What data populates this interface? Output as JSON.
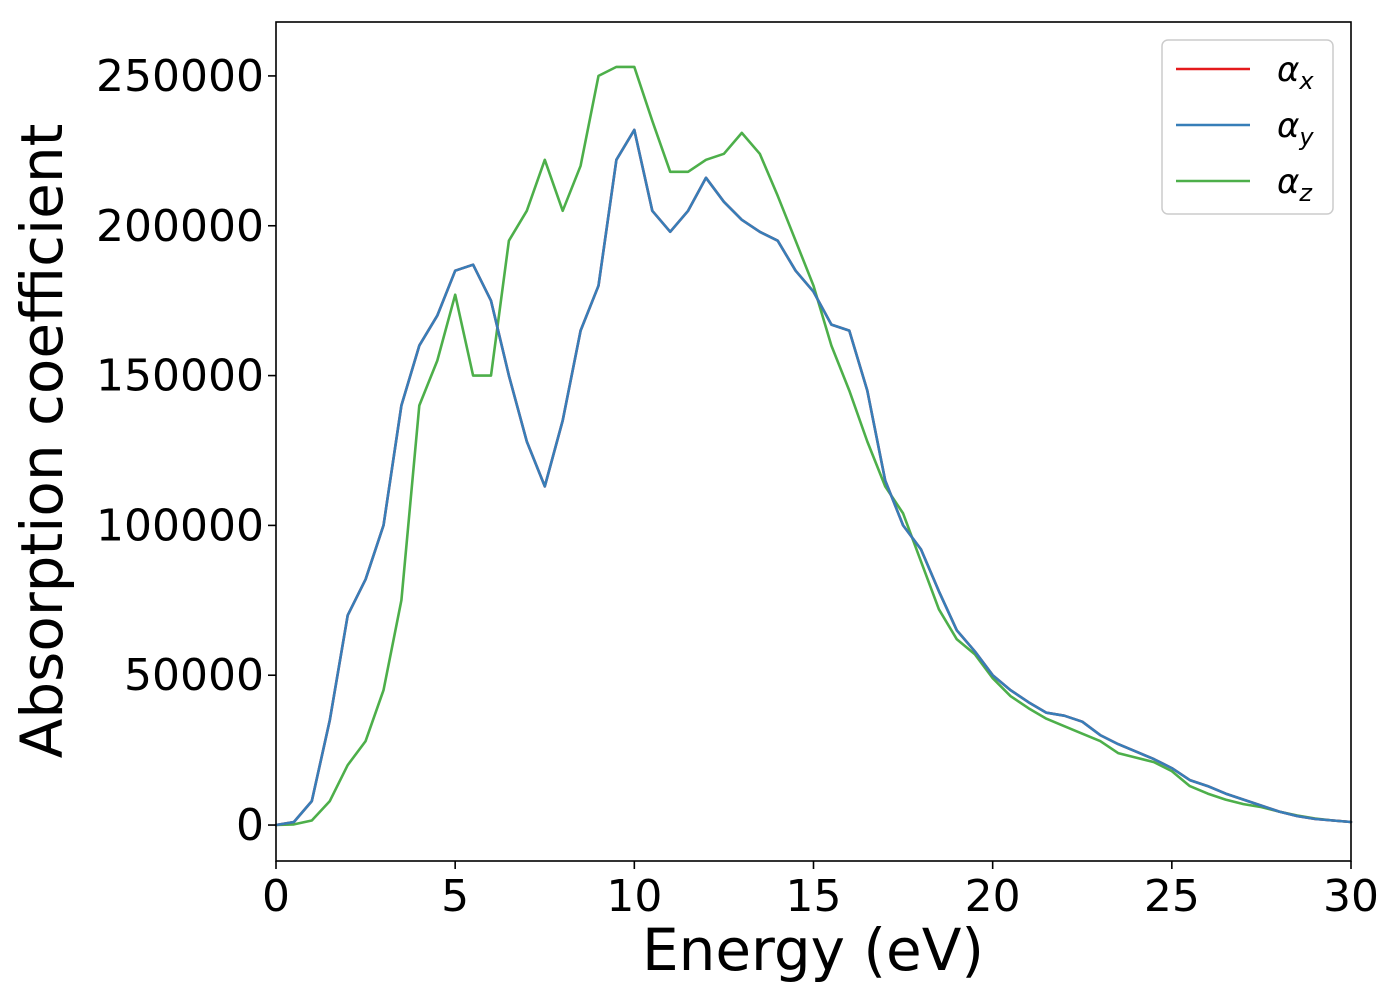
{
  "chart_data": {
    "type": "line",
    "xlabel": "Energy (eV)",
    "ylabel": "Absorption coefficient",
    "xlim": [
      0,
      30
    ],
    "ylim": [
      -12000,
      268000
    ],
    "xticks": [
      0,
      5,
      10,
      15,
      20,
      25,
      30
    ],
    "xtick_labels": [
      "0",
      "5",
      "10",
      "15",
      "20",
      "25",
      "30"
    ],
    "yticks": [
      0,
      50000,
      100000,
      150000,
      200000,
      250000
    ],
    "ytick_labels": [
      "0",
      "50000",
      "100000",
      "150000",
      "200000",
      "250000"
    ],
    "grid": false,
    "legend_position": "top-right",
    "series": [
      {
        "name": "α",
        "subscript": "x",
        "color": "#e41a1c",
        "x": [
          0,
          0.5,
          1.0,
          1.5,
          2.0,
          2.5,
          3.0,
          3.5,
          4.0,
          4.5,
          5.0,
          5.5,
          6.0,
          6.5,
          7.0,
          7.5,
          8.0,
          8.5,
          9.0,
          9.5,
          10.0,
          10.5,
          11.0,
          11.5,
          12.0,
          12.5,
          13.0,
          13.5,
          14.0,
          14.5,
          15.0,
          15.5,
          16.0,
          16.5,
          17.0,
          17.5,
          18.0,
          18.5,
          19.0,
          19.5,
          20.0,
          20.5,
          21.0,
          21.5,
          22.0,
          22.5,
          23.0,
          23.5,
          24.0,
          24.5,
          25.0,
          25.5,
          26.0,
          26.5,
          27.0,
          27.5,
          28.0,
          28.5,
          29.0,
          29.5,
          30.0
        ],
        "y": [
          0,
          1000,
          8000,
          35000,
          70000,
          82000,
          100000,
          140000,
          160000,
          170000,
          185000,
          187000,
          175000,
          150000,
          128000,
          113000,
          135000,
          165000,
          180000,
          222000,
          232000,
          205000,
          198000,
          205000,
          216000,
          208000,
          202000,
          198000,
          195000,
          185000,
          178000,
          167000,
          165000,
          145000,
          115000,
          100000,
          92000,
          78000,
          65000,
          58000,
          50000,
          45000,
          41000,
          37500,
          36500,
          34500,
          30000,
          27000,
          24500,
          22000,
          19000,
          15000,
          13000,
          10500,
          8500,
          6500,
          4500,
          3000,
          2000,
          1500,
          1000
        ]
      },
      {
        "name": "α",
        "subscript": "y",
        "color": "#377eb8",
        "x": [
          0,
          0.5,
          1.0,
          1.5,
          2.0,
          2.5,
          3.0,
          3.5,
          4.0,
          4.5,
          5.0,
          5.5,
          6.0,
          6.5,
          7.0,
          7.5,
          8.0,
          8.5,
          9.0,
          9.5,
          10.0,
          10.5,
          11.0,
          11.5,
          12.0,
          12.5,
          13.0,
          13.5,
          14.0,
          14.5,
          15.0,
          15.5,
          16.0,
          16.5,
          17.0,
          17.5,
          18.0,
          18.5,
          19.0,
          19.5,
          20.0,
          20.5,
          21.0,
          21.5,
          22.0,
          22.5,
          23.0,
          23.5,
          24.0,
          24.5,
          25.0,
          25.5,
          26.0,
          26.5,
          27.0,
          27.5,
          28.0,
          28.5,
          29.0,
          29.5,
          30.0
        ],
        "y": [
          0,
          1000,
          8000,
          35000,
          70000,
          82000,
          100000,
          140000,
          160000,
          170000,
          185000,
          187000,
          175000,
          150000,
          128000,
          113000,
          135000,
          165000,
          180000,
          222000,
          232000,
          205000,
          198000,
          205000,
          216000,
          208000,
          202000,
          198000,
          195000,
          185000,
          178000,
          167000,
          165000,
          145000,
          115000,
          100000,
          92000,
          78000,
          65000,
          58000,
          50000,
          45000,
          41000,
          37500,
          36500,
          34500,
          30000,
          27000,
          24500,
          22000,
          19000,
          15000,
          13000,
          10500,
          8500,
          6500,
          4500,
          3000,
          2000,
          1500,
          1000
        ]
      },
      {
        "name": "α",
        "subscript": "z",
        "color": "#4daf4a",
        "x": [
          0,
          0.5,
          1.0,
          1.5,
          2.0,
          2.5,
          3.0,
          3.5,
          4.0,
          4.5,
          5.0,
          5.5,
          6.0,
          6.5,
          7.0,
          7.5,
          8.0,
          8.5,
          9.0,
          9.5,
          10.0,
          10.5,
          11.0,
          11.5,
          12.0,
          12.5,
          13.0,
          13.5,
          14.0,
          14.5,
          15.0,
          15.5,
          16.0,
          16.5,
          17.0,
          17.5,
          18.0,
          18.5,
          19.0,
          19.5,
          20.0,
          20.5,
          21.0,
          21.5,
          22.0,
          22.5,
          23.0,
          23.5,
          24.0,
          24.5,
          25.0,
          25.5,
          26.0,
          26.5,
          27.0,
          27.5,
          28.0,
          28.5,
          29.0,
          29.5,
          30.0
        ],
        "y": [
          0,
          200,
          1500,
          8000,
          20000,
          28000,
          45000,
          75000,
          140000,
          155000,
          177000,
          150000,
          150000,
          195000,
          205000,
          222000,
          205000,
          220000,
          250000,
          253000,
          253000,
          235000,
          218000,
          218000,
          222000,
          224000,
          231000,
          224000,
          210000,
          195000,
          180000,
          160000,
          145000,
          128000,
          113000,
          104000,
          88000,
          72000,
          62000,
          57000,
          49000,
          43000,
          39000,
          35500,
          33000,
          30500,
          28000,
          24000,
          22500,
          21000,
          18000,
          13000,
          10500,
          8500,
          7000,
          6000,
          4500,
          3200,
          2200,
          1500,
          1000
        ]
      }
    ]
  }
}
